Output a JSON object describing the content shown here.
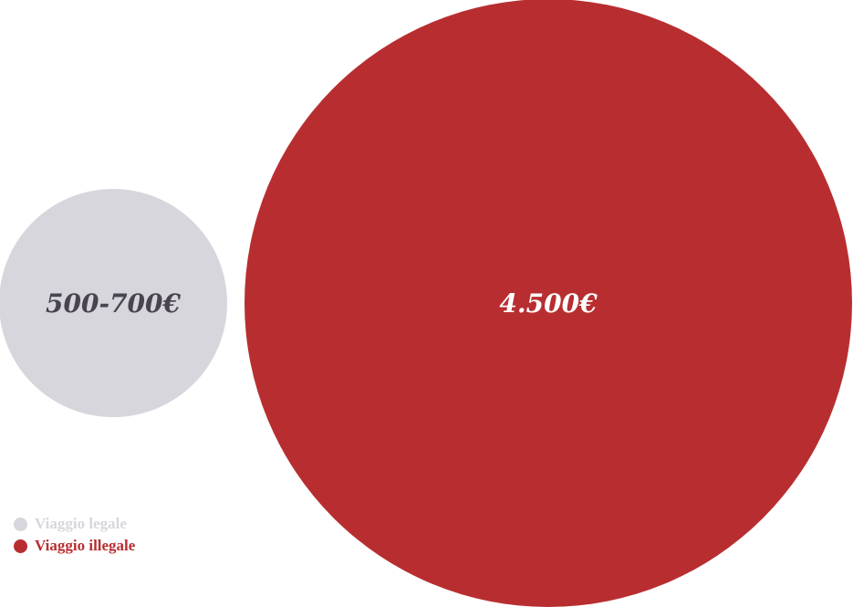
{
  "chart_data": {
    "type": "bubble",
    "series": [
      {
        "name": "Viaggio legale",
        "label": "500-700€",
        "value_min": 500,
        "value_max": 700,
        "color": "#d6d6dc",
        "label_color": "#4a4350"
      },
      {
        "name": "Viaggio illegale",
        "label": "4.500€",
        "value": 4500,
        "color": "#b82e30",
        "label_color": "#ffffff"
      }
    ],
    "legend_position": "bottom-left",
    "title": "",
    "xlabel": "",
    "ylabel": ""
  },
  "legend": {
    "items": [
      {
        "label": "Viaggio legale",
        "color": "#d6d6dc"
      },
      {
        "label": "Viaggio illegale",
        "color": "#b82e30"
      }
    ]
  }
}
